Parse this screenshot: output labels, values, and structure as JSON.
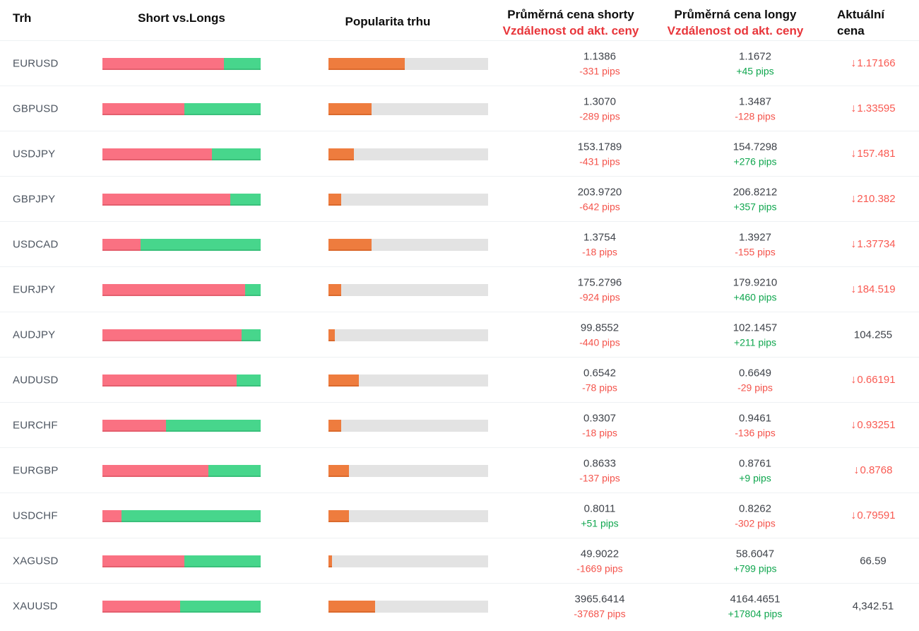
{
  "header": {
    "market": "Trh",
    "short_vs_longs": "Short vs.Longs",
    "popularity": "Popularita trhu",
    "avg_short_line1": "Průměrná cena shorty",
    "avg_short_line2": "Vzdálenost od akt. ceny",
    "avg_long_line1": "Průměrná cena longy",
    "avg_long_line2": "Vzdálenost od akt. ceny",
    "current_line1": "Aktuální",
    "current_line2": "cena"
  },
  "icons": {
    "down_arrow": "↓"
  },
  "colors": {
    "short_bar": "#fa7182",
    "long_bar": "#47d68c",
    "popularity_fill": "#ee7c3e",
    "bar_track": "#e3e3e3",
    "negative_text": "#f4534b",
    "positive_text": "#0fa64e",
    "header_accent": "#e8353a",
    "current_down": "#f95a52",
    "price_text": "#3f434a"
  },
  "rows": [
    {
      "market": "EURUSD",
      "short_pct": 77,
      "popularity_pct": 48,
      "short_price": "1.1386",
      "short_pips": "-331 pips",
      "short_pips_color": "red",
      "long_price": "1.1672",
      "long_pips": "+45 pips",
      "long_pips_color": "green",
      "current_price": "1.17166",
      "current_direction": "down"
    },
    {
      "market": "GBPUSD",
      "short_pct": 52,
      "popularity_pct": 27,
      "short_price": "1.3070",
      "short_pips": "-289 pips",
      "short_pips_color": "red",
      "long_price": "1.3487",
      "long_pips": "-128 pips",
      "long_pips_color": "red",
      "current_price": "1.33595",
      "current_direction": "down"
    },
    {
      "market": "USDJPY",
      "short_pct": 69,
      "popularity_pct": 16,
      "short_price": "153.1789",
      "short_pips": "-431 pips",
      "short_pips_color": "red",
      "long_price": "154.7298",
      "long_pips": "+276 pips",
      "long_pips_color": "green",
      "current_price": "157.481",
      "current_direction": "down"
    },
    {
      "market": "GBPJPY",
      "short_pct": 81,
      "popularity_pct": 8,
      "short_price": "203.9720",
      "short_pips": "-642 pips",
      "short_pips_color": "red",
      "long_price": "206.8212",
      "long_pips": "+357 pips",
      "long_pips_color": "green",
      "current_price": "210.382",
      "current_direction": "down"
    },
    {
      "market": "USDCAD",
      "short_pct": 24,
      "popularity_pct": 27,
      "short_price": "1.3754",
      "short_pips": "-18 pips",
      "short_pips_color": "red",
      "long_price": "1.3927",
      "long_pips": "-155 pips",
      "long_pips_color": "red",
      "current_price": "1.37734",
      "current_direction": "down"
    },
    {
      "market": "EURJPY",
      "short_pct": 90,
      "popularity_pct": 8,
      "short_price": "175.2796",
      "short_pips": "-924 pips",
      "short_pips_color": "red",
      "long_price": "179.9210",
      "long_pips": "+460 pips",
      "long_pips_color": "green",
      "current_price": "184.519",
      "current_direction": "down"
    },
    {
      "market": "AUDJPY",
      "short_pct": 88,
      "popularity_pct": 4,
      "short_price": "99.8552",
      "short_pips": "-440 pips",
      "short_pips_color": "red",
      "long_price": "102.1457",
      "long_pips": "+211 pips",
      "long_pips_color": "green",
      "current_price": "104.255",
      "current_direction": "none"
    },
    {
      "market": "AUDUSD",
      "short_pct": 85,
      "popularity_pct": 19,
      "short_price": "0.6542",
      "short_pips": "-78 pips",
      "short_pips_color": "red",
      "long_price": "0.6649",
      "long_pips": "-29 pips",
      "long_pips_color": "red",
      "current_price": "0.66191",
      "current_direction": "down"
    },
    {
      "market": "EURCHF",
      "short_pct": 40,
      "popularity_pct": 8,
      "short_price": "0.9307",
      "short_pips": "-18 pips",
      "short_pips_color": "red",
      "long_price": "0.9461",
      "long_pips": "-136 pips",
      "long_pips_color": "red",
      "current_price": "0.93251",
      "current_direction": "down"
    },
    {
      "market": "EURGBP",
      "short_pct": 67,
      "popularity_pct": 13,
      "short_price": "0.8633",
      "short_pips": "-137 pips",
      "short_pips_color": "red",
      "long_price": "0.8761",
      "long_pips": "+9 pips",
      "long_pips_color": "green",
      "current_price": "0.8768",
      "current_direction": "down"
    },
    {
      "market": "USDCHF",
      "short_pct": 12,
      "popularity_pct": 13,
      "short_price": "0.8011",
      "short_pips": "+51 pips",
      "short_pips_color": "green",
      "long_price": "0.8262",
      "long_pips": "-302 pips",
      "long_pips_color": "red",
      "current_price": "0.79591",
      "current_direction": "down"
    },
    {
      "market": "XAGUSD",
      "short_pct": 52,
      "popularity_pct": 2,
      "short_price": "49.9022",
      "short_pips": "-1669 pips",
      "short_pips_color": "red",
      "long_price": "58.6047",
      "long_pips": "+799 pips",
      "long_pips_color": "green",
      "current_price": "66.59",
      "current_direction": "none"
    },
    {
      "market": "XAUUSD",
      "short_pct": 49,
      "popularity_pct": 29,
      "short_price": "3965.6414",
      "short_pips": "-37687 pips",
      "short_pips_color": "red",
      "long_price": "4164.4651",
      "long_pips": "+17804 pips",
      "long_pips_color": "green",
      "current_price": "4,342.51",
      "current_direction": "none"
    }
  ],
  "chart_data": {
    "type": "table",
    "title": "Forex sentiment: Short vs.Longs / Popularita trhu",
    "columns": [
      "Trh",
      "Short %",
      "Long %",
      "Popularita trhu %",
      "Průměrná cena shorty",
      "Vzdálenost od akt. ceny (shorty)",
      "Průměrná cena longy",
      "Vzdálenost od akt. ceny (longy)",
      "Aktuální cena"
    ],
    "rows": [
      [
        "EURUSD",
        77,
        23,
        48,
        1.1386,
        "-331 pips",
        1.1672,
        "+45 pips",
        "1.17166"
      ],
      [
        "GBPUSD",
        52,
        48,
        27,
        1.307,
        "-289 pips",
        1.3487,
        "-128 pips",
        "1.33595"
      ],
      [
        "USDJPY",
        69,
        31,
        16,
        153.1789,
        "-431 pips",
        154.7298,
        "+276 pips",
        "157.481"
      ],
      [
        "GBPJPY",
        81,
        19,
        8,
        203.972,
        "-642 pips",
        206.8212,
        "+357 pips",
        "210.382"
      ],
      [
        "USDCAD",
        24,
        76,
        27,
        1.3754,
        "-18 pips",
        1.3927,
        "-155 pips",
        "1.37734"
      ],
      [
        "EURJPY",
        90,
        10,
        8,
        175.2796,
        "-924 pips",
        179.921,
        "+460 pips",
        "184.519"
      ],
      [
        "AUDJPY",
        88,
        12,
        4,
        99.8552,
        "-440 pips",
        102.1457,
        "+211 pips",
        "104.255"
      ],
      [
        "AUDUSD",
        85,
        15,
        19,
        0.6542,
        "-78 pips",
        0.6649,
        "-29 pips",
        "0.66191"
      ],
      [
        "EURCHF",
        40,
        60,
        8,
        0.9307,
        "-18 pips",
        0.9461,
        "-136 pips",
        "0.93251"
      ],
      [
        "EURGBP",
        67,
        33,
        13,
        0.8633,
        "-137 pips",
        0.8761,
        "+9 pips",
        "0.8768"
      ],
      [
        "USDCHF",
        12,
        88,
        13,
        0.8011,
        "+51 pips",
        0.8262,
        "-302 pips",
        "0.79591"
      ],
      [
        "XAGUSD",
        52,
        48,
        2,
        49.9022,
        "-1669 pips",
        58.6047,
        "+799 pips",
        "66.59"
      ],
      [
        "XAUUSD",
        49,
        51,
        29,
        3965.6414,
        "-37687 pips",
        4164.4651,
        "+17804 pips",
        "4,342.51"
      ]
    ]
  }
}
